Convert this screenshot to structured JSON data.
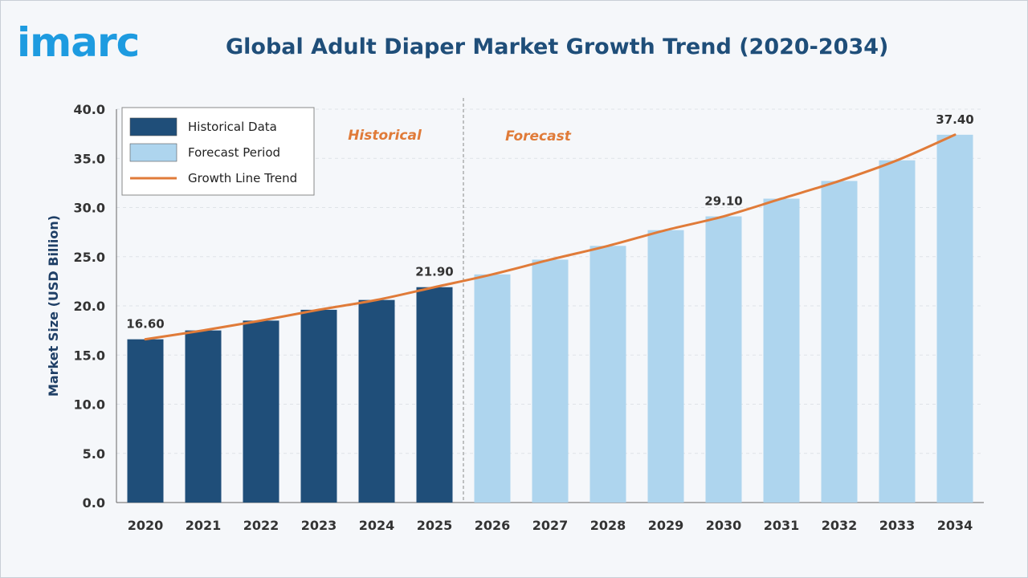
{
  "brand": {
    "logo_text": "imarc"
  },
  "colors": {
    "historical": "#1f4e79",
    "forecast": "#aed5ee",
    "trend": "#e07b39",
    "title": "#1f4e79",
    "logo": "#1e9be0"
  },
  "chart_data": {
    "type": "bar",
    "title": "Global Adult Diaper Market Growth Trend (2020-2034)",
    "xlabel": "",
    "ylabel": "Market Size (USD Billion)",
    "ylim": [
      0,
      40
    ],
    "yticks": [
      "0.0",
      "5.0",
      "10.0",
      "15.0",
      "20.0",
      "25.0",
      "30.0",
      "35.0",
      "40.0"
    ],
    "grid": true,
    "legend_position": "top-left",
    "categories": [
      "2020",
      "2021",
      "2022",
      "2023",
      "2024",
      "2025",
      "2026",
      "2027",
      "2028",
      "2029",
      "2030",
      "2031",
      "2032",
      "2033",
      "2034"
    ],
    "series": [
      {
        "name": "Historical Data",
        "type": "bar",
        "values": [
          16.6,
          17.5,
          18.5,
          19.6,
          20.6,
          21.9,
          null,
          null,
          null,
          null,
          null,
          null,
          null,
          null,
          null
        ]
      },
      {
        "name": "Forecast Period",
        "type": "bar",
        "values": [
          null,
          null,
          null,
          null,
          null,
          null,
          23.2,
          24.7,
          26.1,
          27.7,
          29.1,
          30.9,
          32.7,
          34.8,
          37.4
        ]
      },
      {
        "name": "Growth Line Trend",
        "type": "line",
        "values": [
          16.6,
          17.5,
          18.5,
          19.6,
          20.6,
          21.9,
          23.2,
          24.7,
          26.1,
          27.7,
          29.1,
          30.9,
          32.7,
          34.8,
          37.4
        ]
      }
    ],
    "data_labels": [
      {
        "category": "2020",
        "text": "16.60"
      },
      {
        "category": "2025",
        "text": "21.90"
      },
      {
        "category": "2030",
        "text": "29.10"
      },
      {
        "category": "2034",
        "text": "37.40"
      }
    ],
    "section_labels": {
      "historical": "Historical",
      "forecast": "Forecast"
    }
  }
}
